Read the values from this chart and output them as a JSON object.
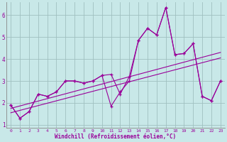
{
  "background_color": "#c8e8e8",
  "line_color": "#990099",
  "grid_color": "#a0c0c0",
  "xlabel": "Windchill (Refroidissement éolien,°C)",
  "xlim": [
    -0.5,
    23.5
  ],
  "ylim": [
    0.85,
    6.6
  ],
  "xticks": [
    0,
    1,
    2,
    3,
    4,
    5,
    6,
    7,
    8,
    9,
    10,
    11,
    12,
    13,
    14,
    15,
    16,
    17,
    18,
    19,
    20,
    21,
    22,
    23
  ],
  "yticks": [
    1,
    2,
    3,
    4,
    5,
    6
  ],
  "line_high_x": [
    0,
    1,
    2,
    3,
    4,
    5,
    6,
    7,
    8,
    9,
    10,
    11,
    12,
    13,
    14,
    15,
    16,
    17,
    18,
    19,
    20,
    21,
    22,
    23
  ],
  "line_high_y": [
    1.9,
    1.3,
    1.6,
    2.4,
    2.3,
    2.5,
    3.0,
    3.0,
    2.9,
    3.0,
    3.25,
    3.3,
    2.4,
    3.2,
    4.85,
    5.4,
    5.1,
    6.35,
    4.2,
    4.25,
    4.7,
    2.3,
    2.1,
    3.0
  ],
  "line_low_x": [
    0,
    1,
    2,
    3,
    4,
    5,
    6,
    7,
    8,
    9,
    10,
    11,
    12,
    13,
    14,
    15,
    16,
    17,
    18,
    19,
    20,
    21,
    22,
    23
  ],
  "line_low_y": [
    1.9,
    1.3,
    1.6,
    2.4,
    2.3,
    2.5,
    3.0,
    3.0,
    2.9,
    3.0,
    3.25,
    1.85,
    2.5,
    3.0,
    4.85,
    5.4,
    5.1,
    6.35,
    4.2,
    4.25,
    4.7,
    2.3,
    2.1,
    3.0
  ],
  "trend1_x": [
    0,
    23
  ],
  "trend1_y": [
    1.75,
    4.3
  ],
  "trend2_x": [
    0,
    23
  ],
  "trend2_y": [
    1.55,
    4.05
  ]
}
